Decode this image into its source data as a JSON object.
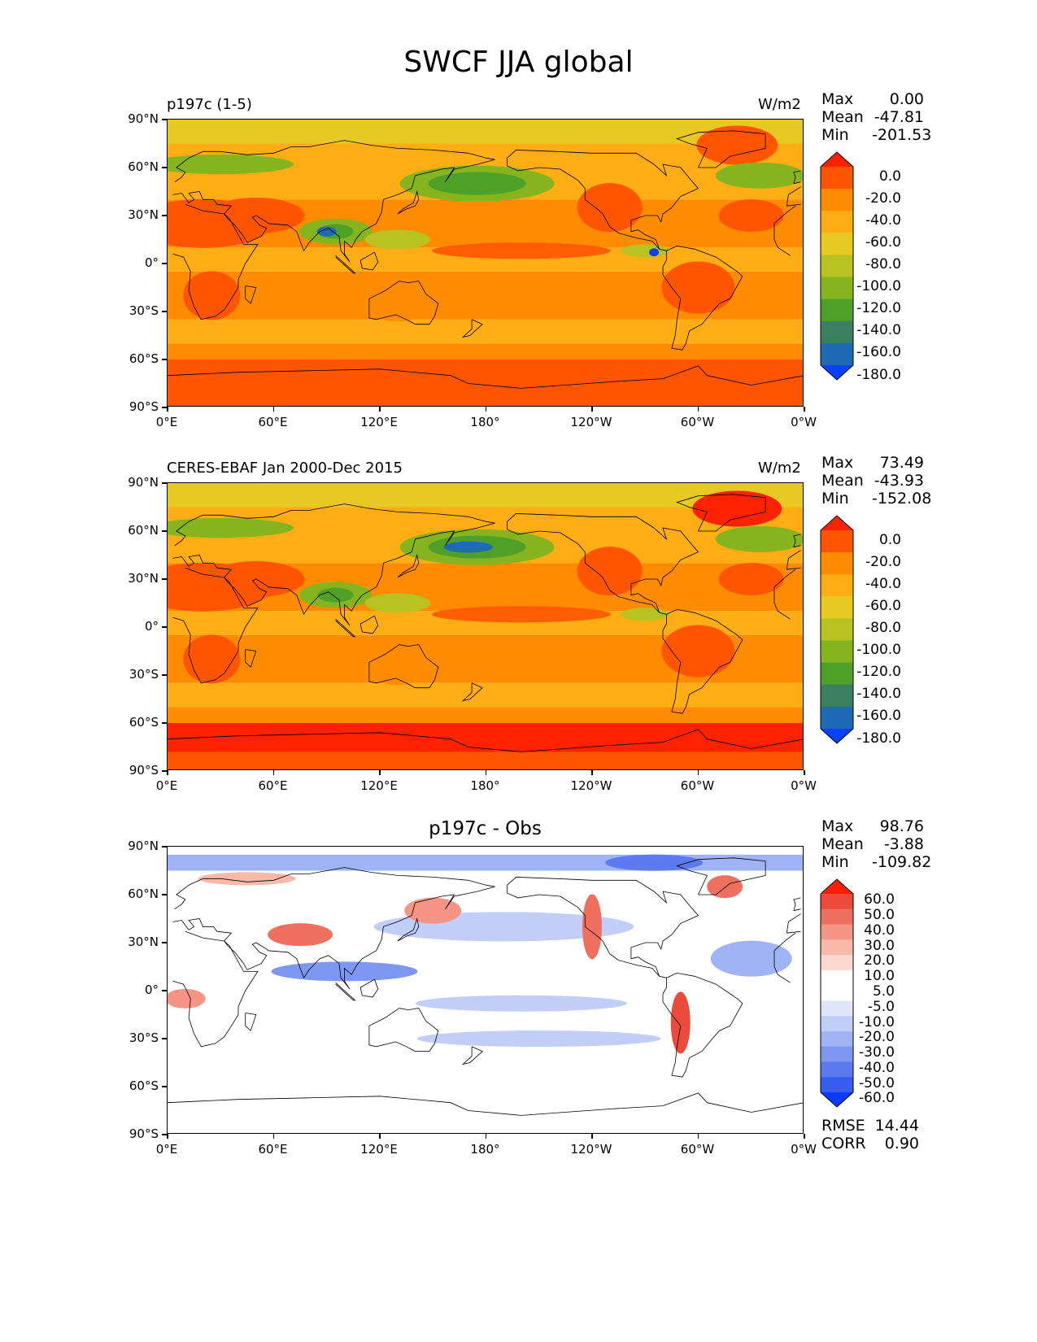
{
  "figure_title": "SWCF JJA global",
  "panels": [
    {
      "id": "model",
      "left_title": "p197c (1-5)",
      "right_title": "W/m2",
      "center_title": "",
      "stats": {
        "max": "0.00",
        "mean": "-47.81",
        "min": "-201.53"
      },
      "colorbar_labels": [
        "0.0",
        "-20.0",
        "-40.0",
        "-60.0",
        "-80.0",
        "-100.0",
        "-120.0",
        "-140.0",
        "-160.0",
        "-180.0"
      ]
    },
    {
      "id": "obs",
      "left_title": "CERES-EBAF Jan 2000-Dec 2015",
      "right_title": "W/m2",
      "center_title": "",
      "stats": {
        "max": "73.49",
        "mean": "-43.93",
        "min": "-152.08"
      },
      "colorbar_labels": [
        "0.0",
        "-20.0",
        "-40.0",
        "-60.0",
        "-80.0",
        "-100.0",
        "-120.0",
        "-140.0",
        "-160.0",
        "-180.0"
      ]
    },
    {
      "id": "diff",
      "left_title": "",
      "right_title": "",
      "center_title": "p197c - Obs",
      "stats": {
        "max": "98.76",
        "mean": "-3.88",
        "min": "-109.82"
      },
      "colorbar_labels": [
        "60.0",
        "50.0",
        "40.0",
        "30.0",
        "20.0",
        "10.0",
        "5.0",
        "-5.0",
        "-10.0",
        "-20.0",
        "-30.0",
        "-40.0",
        "-50.0",
        "-60.0"
      ],
      "rmse_label": "RMSE",
      "rmse": "14.44",
      "corr_label": "CORR",
      "corr": "0.90"
    }
  ],
  "stat_labels": {
    "max": "Max",
    "mean": "Mean",
    "min": "Min"
  },
  "lat_ticks": [
    "90°N",
    "60°N",
    "30°N",
    "0°",
    "30°S",
    "60°S",
    "90°S"
  ],
  "lon_ticks": [
    "0°E",
    "60°E",
    "120°E",
    "180°",
    "120°W",
    "60°W",
    "0°W"
  ],
  "colors": {
    "field_scale": [
      "#ff2200",
      "#ff5500",
      "#ff8c00",
      "#ffad14",
      "#e8c921",
      "#b8c220",
      "#86b41e",
      "#4ea028",
      "#3a8060",
      "#1f6ab4",
      "#0a40ff"
    ],
    "diff_scale": [
      "#ff1e00",
      "#ec4a3a",
      "#f07060",
      "#f59585",
      "#fab8a8",
      "#fdd8d0",
      "#ffffff",
      "#ffffff",
      "#dfe6fb",
      "#c0cef8",
      "#9fb3f5",
      "#7e97f0",
      "#5c7bee",
      "#365cf0",
      "#0a3cff"
    ],
    "coastline": "#000000"
  }
}
